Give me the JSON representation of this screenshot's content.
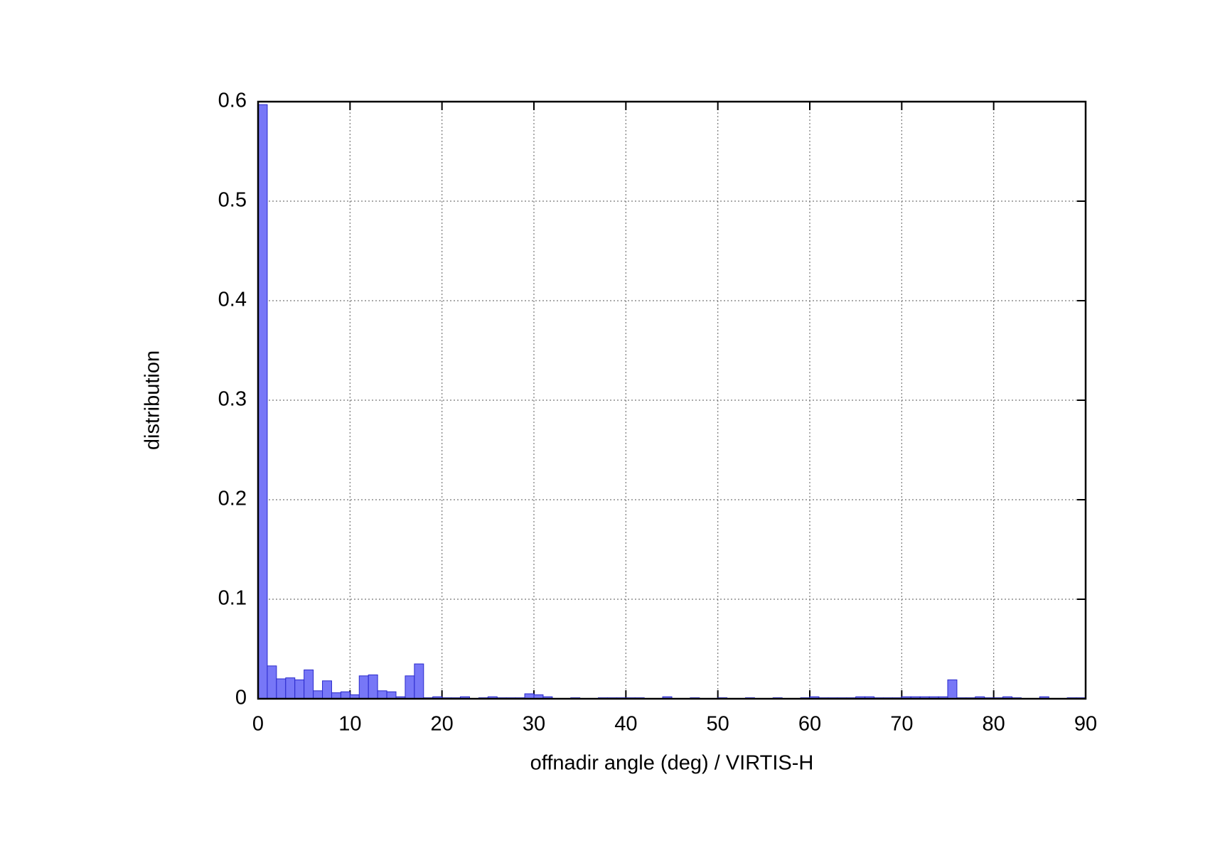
{
  "chart_data": {
    "type": "histogram",
    "xlabel": "offnadir angle (deg) / VIRTIS-H",
    "ylabel": "distribution",
    "bins": [
      0,
      1,
      2,
      3,
      4,
      5,
      6,
      7,
      8,
      9,
      10,
      11,
      12,
      13,
      14,
      15,
      16,
      17,
      18,
      19,
      20,
      21,
      22,
      23,
      24,
      25,
      26,
      27,
      28,
      29,
      30,
      31,
      32,
      33,
      34,
      35,
      36,
      37,
      38,
      39,
      40,
      41,
      42,
      43,
      44,
      45,
      46,
      47,
      48,
      49,
      50,
      51,
      52,
      53,
      54,
      55,
      56,
      57,
      58,
      59,
      60,
      61,
      62,
      63,
      64,
      65,
      66,
      67,
      68,
      69,
      70,
      71,
      72,
      73,
      74,
      75,
      76,
      77,
      78,
      79,
      80,
      81,
      82,
      83,
      84,
      85,
      86,
      87,
      88,
      89,
      90
    ],
    "values": [
      0.597,
      0.033,
      0.02,
      0.021,
      0.019,
      0.029,
      0.008,
      0.018,
      0.006,
      0.007,
      0.004,
      0.023,
      0.024,
      0.008,
      0.007,
      0.002,
      0.023,
      0.035,
      0.001,
      0.002,
      0.001,
      0.001,
      0.002,
      0,
      0.001,
      0.002,
      0.001,
      0.001,
      0.001,
      0.005,
      0.004,
      0.002,
      0,
      0,
      0.001,
      0,
      0,
      0.001,
      0.001,
      0.001,
      0.001,
      0.001,
      0,
      0,
      0.002,
      0,
      0,
      0.001,
      0,
      0,
      0.001,
      0,
      0,
      0.001,
      0,
      0,
      0.001,
      0,
      0,
      0.001,
      0.002,
      0.001,
      0.001,
      0.001,
      0.001,
      0.002,
      0.002,
      0.001,
      0.001,
      0.001,
      0.002,
      0.002,
      0.002,
      0.002,
      0.002,
      0.019,
      0.001,
      0.001,
      0.002,
      0.001,
      0.001,
      0.002,
      0.001,
      0,
      0,
      0.002,
      0,
      0,
      0.001,
      0.001
    ],
    "color": "#7777f7",
    "edge_color": "#2a2acc",
    "xlim": [
      0,
      90
    ],
    "xticks": [
      0,
      10,
      20,
      30,
      40,
      50,
      60,
      70,
      80,
      90
    ],
    "ylim": [
      0,
      0.6
    ],
    "yticks": [
      0,
      0.1,
      0.2,
      0.3,
      0.4,
      0.5,
      0.6
    ],
    "grid": true
  }
}
